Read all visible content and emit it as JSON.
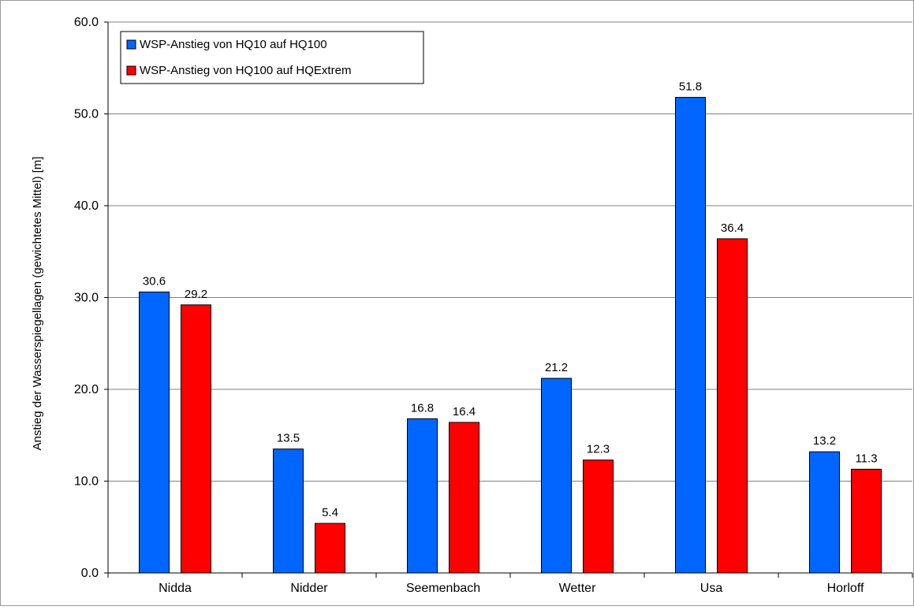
{
  "chart_data": {
    "type": "bar",
    "title": "",
    "xlabel": "",
    "ylabel": "Anstieg der Wasserspiegellagen (gewichtetes Mittel) [m]",
    "ylim": [
      0,
      60
    ],
    "yticks": [
      0,
      10,
      20,
      30,
      40,
      50,
      60
    ],
    "ytick_labels": [
      "0.0",
      "10.0",
      "20.0",
      "30.0",
      "40.0",
      "50.0",
      "60.0"
    ],
    "grid": true,
    "legend_position": "top-left",
    "categories": [
      "Nidda",
      "Nidder",
      "Seemenbach",
      "Wetter",
      "Usa",
      "Horloff"
    ],
    "series": [
      {
        "name": "WSP-Anstieg von HQ10 auf HQ100",
        "color": "#0066ff",
        "values": [
          30.6,
          13.5,
          16.8,
          21.2,
          51.8,
          13.2
        ],
        "labels": [
          "30.6",
          "13.5",
          "16.8",
          "21.2",
          "51.8",
          "13.2"
        ]
      },
      {
        "name": "WSP-Anstieg von HQ100 auf HQExtrem",
        "color": "#ff0000",
        "values": [
          29.2,
          5.4,
          16.4,
          12.3,
          36.4,
          11.3
        ],
        "labels": [
          "29.2",
          "5.4",
          "16.4",
          "12.3",
          "36.4",
          "11.3"
        ]
      }
    ]
  }
}
